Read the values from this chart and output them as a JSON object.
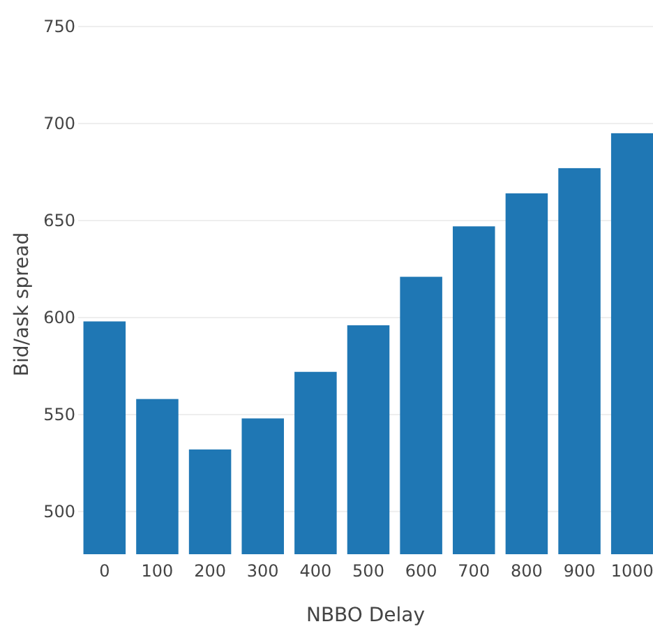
{
  "chart_data": {
    "type": "bar",
    "xlabel": "NBBO Delay",
    "ylabel": "Bid/ask spread",
    "categories": [
      "0",
      "100",
      "200",
      "300",
      "400",
      "500",
      "600",
      "700",
      "800",
      "900",
      "1000"
    ],
    "values": [
      598,
      558,
      532,
      548,
      572,
      596,
      621,
      647,
      664,
      677,
      695
    ],
    "color": "#1f77b4",
    "ylim": [
      478,
      750
    ],
    "yticks": [
      500,
      550,
      600,
      650,
      700,
      750
    ],
    "grid": "y"
  }
}
